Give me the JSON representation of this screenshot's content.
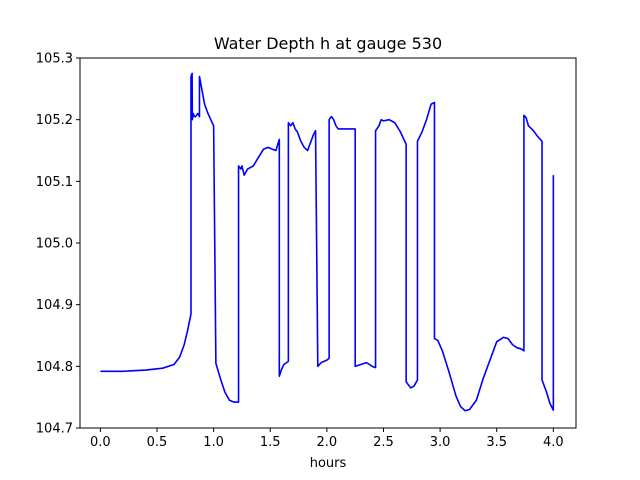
{
  "chart_data": {
    "type": "line",
    "title": "Water Depth h at gauge 530",
    "xlabel": "hours",
    "ylabel": "",
    "xlim": [
      -0.18,
      4.2
    ],
    "ylim": [
      104.7,
      105.3
    ],
    "xticks": [
      0.0,
      0.5,
      1.0,
      1.5,
      2.0,
      2.5,
      3.0,
      3.5,
      4.0
    ],
    "xtick_labels": [
      "0.0",
      "0.5",
      "1.0",
      "1.5",
      "2.0",
      "2.5",
      "3.0",
      "3.5",
      "4.0"
    ],
    "yticks": [
      104.7,
      104.8,
      104.9,
      105.0,
      105.1,
      105.2,
      105.3
    ],
    "ytick_labels": [
      "104.7",
      "104.8",
      "104.9",
      "105.0",
      "105.1",
      "105.2",
      "105.3"
    ],
    "grid": false,
    "series": [
      {
        "color": "#0000ff",
        "points": [
          [
            0.0,
            104.792
          ],
          [
            0.2,
            104.792
          ],
          [
            0.4,
            104.794
          ],
          [
            0.55,
            104.797
          ],
          [
            0.65,
            104.803
          ],
          [
            0.7,
            104.815
          ],
          [
            0.74,
            104.835
          ],
          [
            0.77,
            104.858
          ],
          [
            0.8,
            104.885
          ],
          [
            0.8,
            105.27
          ],
          [
            0.81,
            105.275
          ],
          [
            0.812,
            105.2
          ],
          [
            0.82,
            105.21
          ],
          [
            0.83,
            105.205
          ],
          [
            0.84,
            105.205
          ],
          [
            0.86,
            105.21
          ],
          [
            0.875,
            105.205
          ],
          [
            0.875,
            105.27
          ],
          [
            0.89,
            105.255
          ],
          [
            0.92,
            105.225
          ],
          [
            0.95,
            105.21
          ],
          [
            1.0,
            105.19
          ],
          [
            1.02,
            104.805
          ],
          [
            1.06,
            104.78
          ],
          [
            1.1,
            104.758
          ],
          [
            1.14,
            104.745
          ],
          [
            1.18,
            104.742
          ],
          [
            1.22,
            104.742
          ],
          [
            1.22,
            105.125
          ],
          [
            1.24,
            105.12
          ],
          [
            1.25,
            105.125
          ],
          [
            1.27,
            105.11
          ],
          [
            1.3,
            105.12
          ],
          [
            1.35,
            105.125
          ],
          [
            1.4,
            105.14
          ],
          [
            1.44,
            105.152
          ],
          [
            1.48,
            105.155
          ],
          [
            1.52,
            105.152
          ],
          [
            1.55,
            105.15
          ],
          [
            1.58,
            105.168
          ],
          [
            1.58,
            104.784
          ],
          [
            1.6,
            104.795
          ],
          [
            1.62,
            104.803
          ],
          [
            1.66,
            104.808
          ],
          [
            1.66,
            105.195
          ],
          [
            1.68,
            105.19
          ],
          [
            1.7,
            105.195
          ],
          [
            1.72,
            105.185
          ],
          [
            1.74,
            105.18
          ],
          [
            1.77,
            105.165
          ],
          [
            1.8,
            105.155
          ],
          [
            1.83,
            105.15
          ],
          [
            1.85,
            105.16
          ],
          [
            1.88,
            105.175
          ],
          [
            1.9,
            105.182
          ],
          [
            1.92,
            104.8
          ],
          [
            1.95,
            104.806
          ],
          [
            2.0,
            104.81
          ],
          [
            2.02,
            104.813
          ],
          [
            2.02,
            105.2
          ],
          [
            2.04,
            105.205
          ],
          [
            2.06,
            105.2
          ],
          [
            2.08,
            105.19
          ],
          [
            2.1,
            105.185
          ],
          [
            2.14,
            105.185
          ],
          [
            2.18,
            105.185
          ],
          [
            2.22,
            105.185
          ],
          [
            2.25,
            105.185
          ],
          [
            2.25,
            104.8
          ],
          [
            2.3,
            104.803
          ],
          [
            2.35,
            104.806
          ],
          [
            2.4,
            104.8
          ],
          [
            2.43,
            104.798
          ],
          [
            2.43,
            105.182
          ],
          [
            2.46,
            105.19
          ],
          [
            2.48,
            105.2
          ],
          [
            2.5,
            105.198
          ],
          [
            2.55,
            105.2
          ],
          [
            2.6,
            105.195
          ],
          [
            2.65,
            105.18
          ],
          [
            2.7,
            105.16
          ],
          [
            2.7,
            104.775
          ],
          [
            2.74,
            104.765
          ],
          [
            2.77,
            104.768
          ],
          [
            2.8,
            104.778
          ],
          [
            2.8,
            105.165
          ],
          [
            2.84,
            105.18
          ],
          [
            2.88,
            105.2
          ],
          [
            2.92,
            105.225
          ],
          [
            2.95,
            105.228
          ],
          [
            2.95,
            104.845
          ],
          [
            2.98,
            104.842
          ],
          [
            3.02,
            104.825
          ],
          [
            3.08,
            104.79
          ],
          [
            3.14,
            104.752
          ],
          [
            3.18,
            104.735
          ],
          [
            3.22,
            104.728
          ],
          [
            3.26,
            104.73
          ],
          [
            3.32,
            104.745
          ],
          [
            3.38,
            104.78
          ],
          [
            3.44,
            104.81
          ],
          [
            3.5,
            104.84
          ],
          [
            3.56,
            104.847
          ],
          [
            3.6,
            104.845
          ],
          [
            3.64,
            104.835
          ],
          [
            3.68,
            104.83
          ],
          [
            3.72,
            104.828
          ],
          [
            3.74,
            104.825
          ],
          [
            3.74,
            105.207
          ],
          [
            3.76,
            105.203
          ],
          [
            3.78,
            105.19
          ],
          [
            3.82,
            105.183
          ],
          [
            3.86,
            105.173
          ],
          [
            3.9,
            105.165
          ],
          [
            3.9,
            104.778
          ],
          [
            3.94,
            104.758
          ],
          [
            3.97,
            104.74
          ],
          [
            4.0,
            104.729
          ],
          [
            4.0,
            105.11
          ]
        ]
      }
    ]
  }
}
